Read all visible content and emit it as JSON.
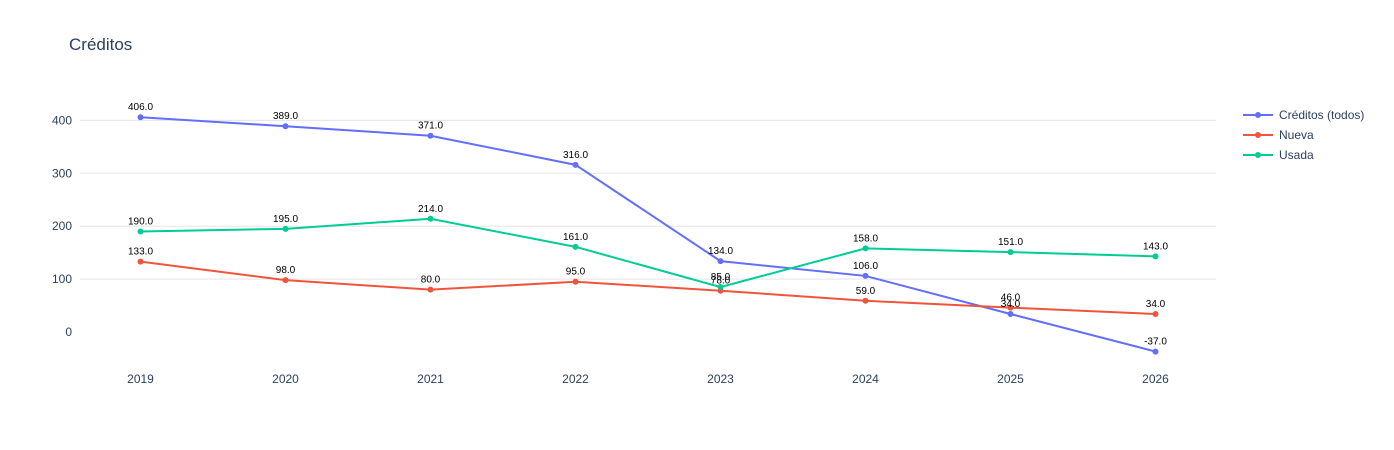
{
  "chart_data": {
    "type": "line",
    "title": "Créditos",
    "x": [
      "2019",
      "2020",
      "2021",
      "2022",
      "2023",
      "2024",
      "2025",
      "2026"
    ],
    "yticks": [
      0,
      100,
      200,
      300,
      400
    ],
    "ylim": [
      -60,
      460
    ],
    "grid": true,
    "legend_position": "top-right",
    "series": [
      {
        "name": "Créditos (todos)",
        "color": "#636efa",
        "values": [
          406.0,
          389.0,
          371.0,
          316.0,
          134.0,
          106.0,
          34.0,
          -37.0
        ],
        "labels": [
          "406.0",
          "389.0",
          "371.0",
          "316.0",
          "134.0",
          "106.0",
          "34.0",
          "-37.0"
        ]
      },
      {
        "name": "Nueva",
        "color": "#ef553b",
        "values": [
          133.0,
          98.0,
          80.0,
          95.0,
          78.0,
          59.0,
          46.0,
          34.0
        ],
        "labels": [
          "133.0",
          "98.0",
          "80.0",
          "95.0",
          "78.0",
          "59.0",
          "46.0",
          "34.0"
        ]
      },
      {
        "name": "Usada",
        "color": "#00cc96",
        "values": [
          190.0,
          195.0,
          214.0,
          161.0,
          85.0,
          158.0,
          151.0,
          143.0
        ],
        "labels": [
          "190.0",
          "195.0",
          "214.0",
          "161.0",
          "85.0",
          "158.0",
          "151.0",
          "143.0"
        ]
      }
    ]
  }
}
